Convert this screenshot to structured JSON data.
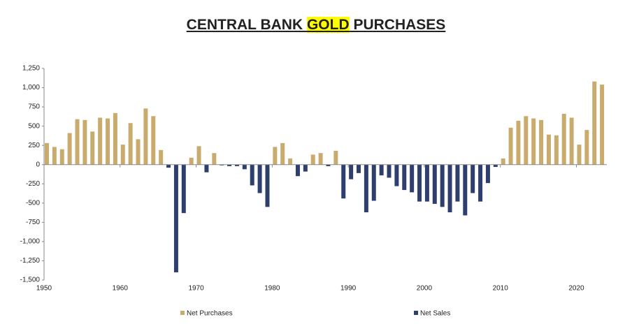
{
  "chart_data": {
    "type": "bar",
    "title": "CENTRAL BANK GOLD PURCHASES",
    "title_highlight": "GOLD",
    "x": [
      1950,
      1951,
      1952,
      1953,
      1954,
      1955,
      1956,
      1957,
      1958,
      1959,
      1960,
      1961,
      1962,
      1963,
      1964,
      1965,
      1966,
      1967,
      1968,
      1969,
      1970,
      1971,
      1972,
      1973,
      1974,
      1975,
      1976,
      1977,
      1978,
      1979,
      1980,
      1981,
      1982,
      1983,
      1984,
      1985,
      1986,
      1987,
      1988,
      1989,
      1990,
      1991,
      1992,
      1993,
      1994,
      1995,
      1996,
      1997,
      1998,
      1999,
      2000,
      2001,
      2002,
      2003,
      2004,
      2005,
      2006,
      2007,
      2008,
      2009,
      2010,
      2011,
      2012,
      2013,
      2014,
      2015,
      2016,
      2017,
      2018,
      2019,
      2020,
      2021,
      2022,
      2023
    ],
    "series": [
      {
        "name": "Net Purchases",
        "color": "#c9ab6e",
        "values": [
          280,
          230,
          200,
          410,
          590,
          580,
          430,
          610,
          600,
          670,
          260,
          540,
          330,
          730,
          630,
          190,
          null,
          null,
          null,
          90,
          240,
          null,
          150,
          null,
          null,
          null,
          null,
          null,
          null,
          null,
          230,
          280,
          80,
          null,
          null,
          130,
          150,
          null,
          180,
          null,
          null,
          null,
          null,
          null,
          null,
          null,
          null,
          null,
          null,
          null,
          null,
          null,
          null,
          null,
          null,
          null,
          null,
          null,
          null,
          null,
          80,
          480,
          570,
          630,
          600,
          580,
          390,
          380,
          660,
          610,
          260,
          450,
          1080,
          1040
        ]
      },
      {
        "name": "Net Sales",
        "color": "#2e3f6e",
        "values": [
          null,
          null,
          null,
          null,
          null,
          null,
          null,
          null,
          null,
          null,
          null,
          null,
          null,
          null,
          null,
          null,
          -40,
          -1400,
          -630,
          null,
          null,
          -100,
          null,
          -10,
          -20,
          -20,
          -60,
          -270,
          -370,
          -550,
          null,
          null,
          null,
          -150,
          -90,
          null,
          null,
          -20,
          null,
          -440,
          -190,
          -110,
          -620,
          -470,
          -140,
          -170,
          -280,
          -330,
          -360,
          -480,
          -480,
          -510,
          -550,
          -620,
          -480,
          -660,
          -370,
          -480,
          -240,
          -30,
          null,
          null,
          null,
          null,
          null,
          null,
          null,
          null,
          null,
          null,
          null,
          null,
          null,
          null
        ]
      }
    ],
    "xlim": [
      1950,
      2024
    ],
    "xticks": [
      1950,
      1960,
      1970,
      1980,
      1990,
      2000,
      2010,
      2020
    ],
    "ylim": [
      -1500,
      1250
    ],
    "yticks": [
      {
        "value": -1500,
        "label": "-1,500"
      },
      {
        "value": -1250,
        "label": "-1,250"
      },
      {
        "value": -1000,
        "label": "-1,000"
      },
      -750,
      -500,
      -250,
      0,
      250,
      500,
      750,
      {
        "value": 1000,
        "label": "1,000"
      },
      {
        "value": 1250,
        "label": "1,250"
      }
    ],
    "legend": "bottom"
  }
}
